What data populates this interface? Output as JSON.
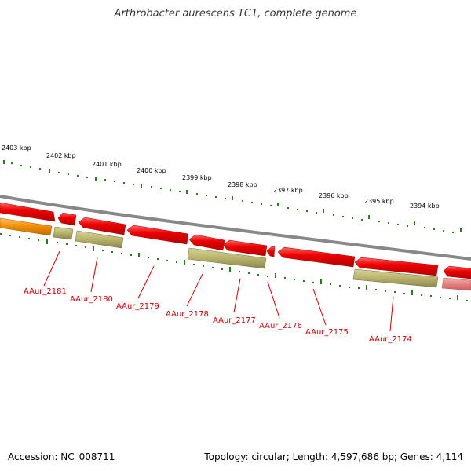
{
  "title": "Arthrobacter aurescens TC1, complete genome",
  "footer": {
    "accession": "Accession: NC_008711",
    "summary": "Topology: circular; Length: 4,597,686 bp; Genes: 4,114"
  },
  "scale": {
    "ticks": [
      "2403 kbp",
      "2402 kbp",
      "2401 kbp",
      "2400 kbp",
      "2399 kbp",
      "2398 kbp",
      "2397 kbp",
      "2396 kbp",
      "2395 kbp",
      "2394 kbp"
    ]
  },
  "genes": {
    "labels": [
      "AAur_2181",
      "AAur_2180",
      "AAur_2179",
      "AAur_2178",
      "AAur_2177",
      "AAur_2176",
      "AAur_2175",
      "AAur_2174"
    ]
  },
  "colors": {
    "backbone": "#888888",
    "gene_red": "#e30000",
    "gene_olive": "#b7b36a",
    "gene_orange": "#f08c00",
    "gene_pink": "#e88080",
    "tick_green": "#2a7a1a",
    "label_red": "#cc0000"
  }
}
